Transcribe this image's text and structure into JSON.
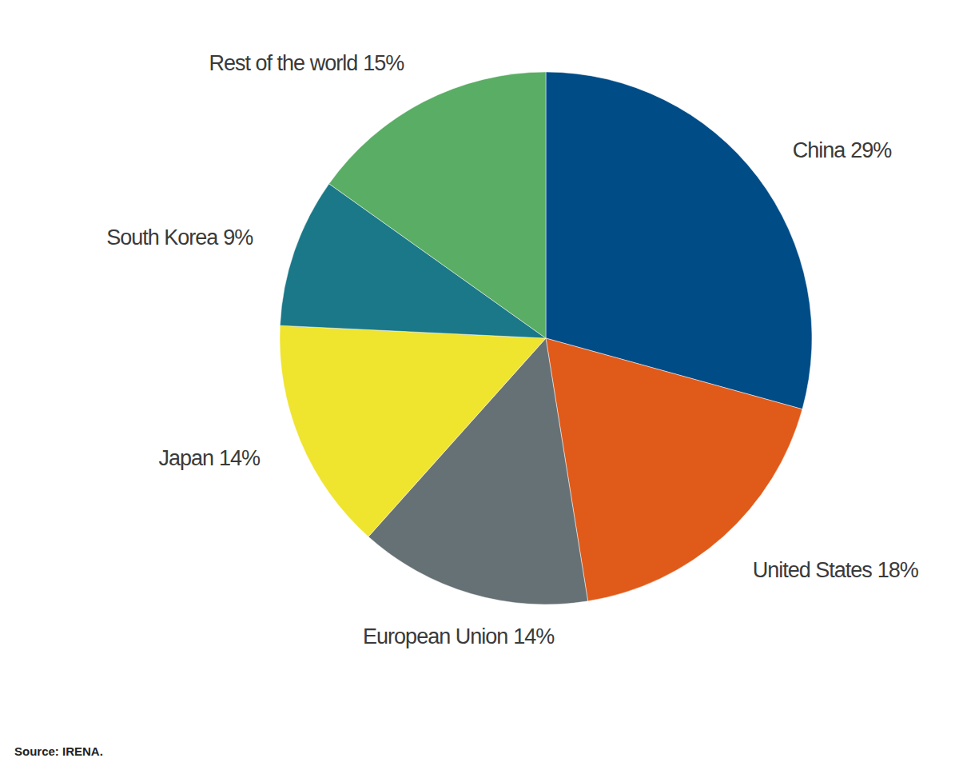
{
  "chart_data": {
    "type": "pie",
    "categories": [
      "China",
      "United States",
      "European Union",
      "Japan",
      "South Korea",
      "Rest of the world"
    ],
    "values": [
      29,
      18,
      14,
      14,
      9,
      15
    ],
    "value_labels": [
      "29%",
      "18%",
      "14%",
      "14%",
      "9%",
      "15%"
    ],
    "data_labels": true,
    "colors": [
      "#004c87",
      "#e05a1a",
      "#667175",
      "#efe42e",
      "#1a7888",
      "#5aad64"
    ],
    "source": "Source: IRENA."
  }
}
